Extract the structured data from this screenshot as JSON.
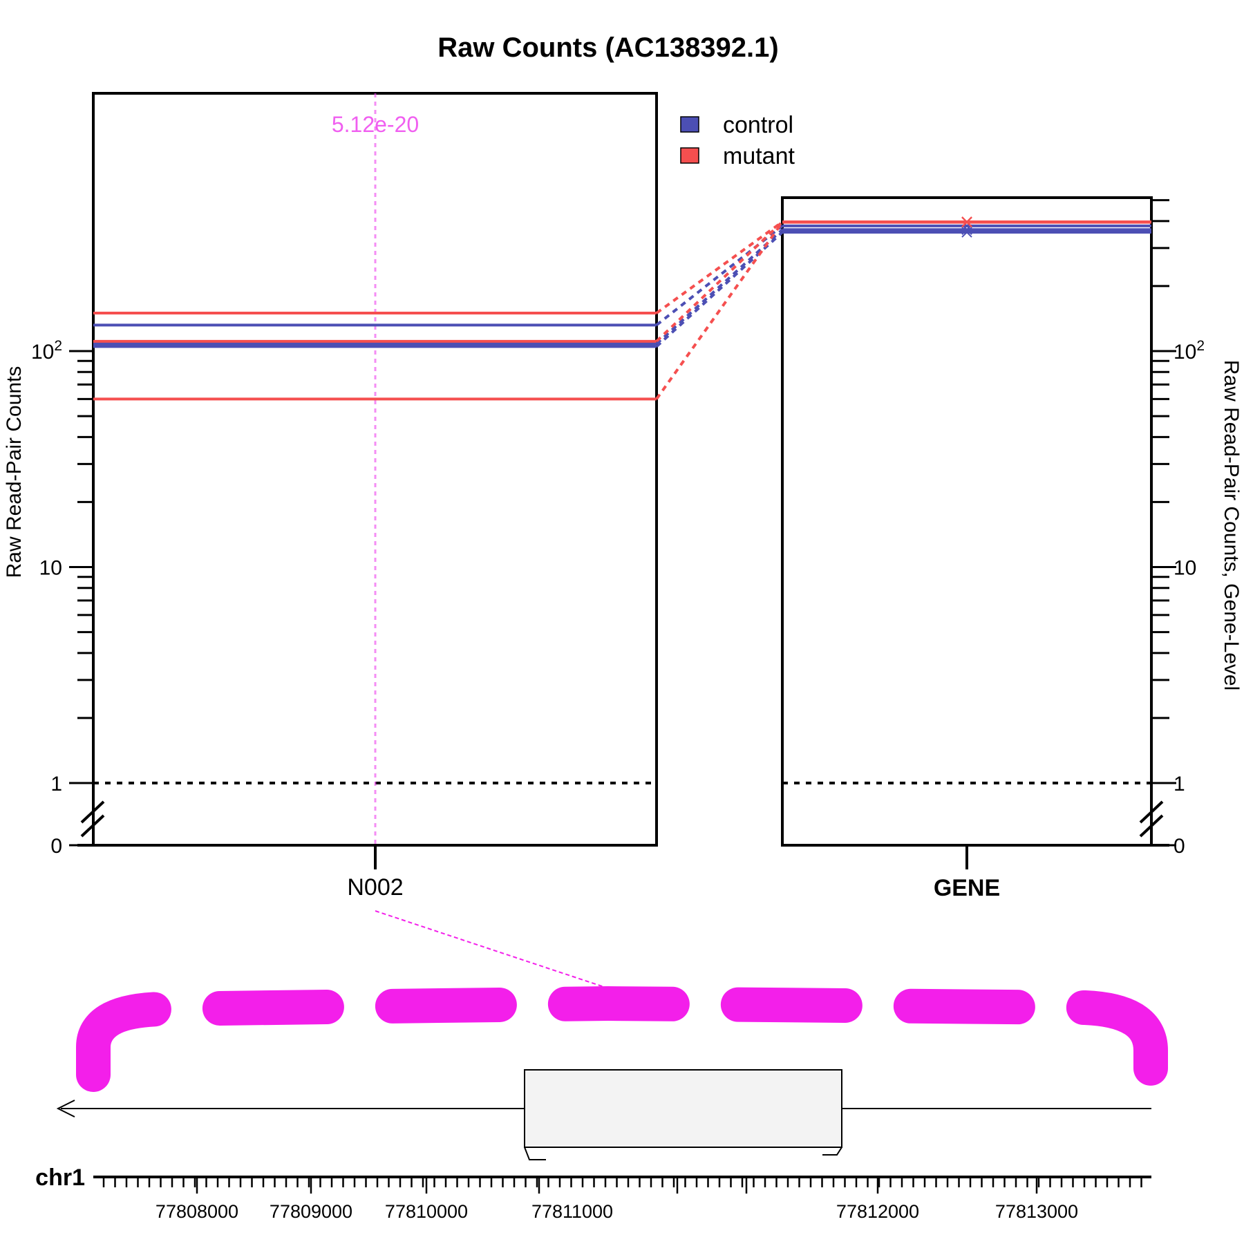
{
  "chart_data": {
    "type": "line",
    "title": "Raw Counts (AC138392.1)",
    "colors": {
      "control": "#4c4fb4",
      "mutant": "#f54f4f",
      "feature": "#f31fea",
      "pvalue": "#ee44ee"
    },
    "legend": {
      "position": "top-right of left panel",
      "entries": [
        "control",
        "mutant"
      ]
    },
    "left_panel": {
      "ylabel": "Raw Read-Pair Counts",
      "scale": "log (with axis break below 1)",
      "yticks": [
        "0",
        "1",
        "10",
        "10^2"
      ],
      "ylim": [
        0,
        155
      ],
      "x_categories": [
        "N002"
      ],
      "series": [
        {
          "name": "control",
          "values": [
            105,
            108,
            132
          ]
        },
        {
          "name": "mutant",
          "values": [
            60,
            111,
            150
          ]
        }
      ],
      "reference_line": 1,
      "annotation": {
        "x": "N002",
        "text": "5.12e-20"
      }
    },
    "right_panel": {
      "ylabel": "Raw Read-Pair Counts, Gene-Level",
      "scale": "log (with axis break below 1)",
      "yticks": [
        "0",
        "1",
        "10",
        "10^2"
      ],
      "ylim": [
        0,
        520
      ],
      "x_categories": [
        "GENE"
      ],
      "series": [
        {
          "name": "control",
          "values": [
            355,
            365,
            380
          ]
        },
        {
          "name": "mutant",
          "values": [
            395,
            470,
            565
          ]
        }
      ],
      "reference_line": 1
    },
    "genome_track": {
      "chromosome": "chr1",
      "tick_labels": [
        "77808000",
        "77809000",
        "77810000",
        "77811000",
        "77812000",
        "77813000"
      ],
      "strand": "minus"
    }
  }
}
